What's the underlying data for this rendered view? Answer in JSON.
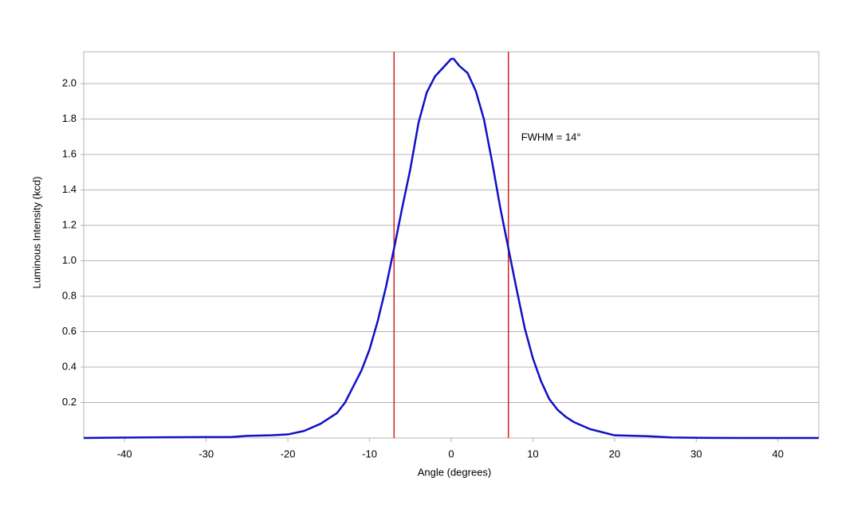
{
  "chart_data": {
    "type": "line",
    "xlabel": "Angle (degrees)",
    "ylabel": "Luminous Intensity (kcd)",
    "annotation": "FWHM = 14°",
    "x": [
      -45,
      -40,
      -35,
      -30,
      -27,
      -25,
      -22,
      -20,
      -18,
      -16,
      -14,
      -13,
      -12,
      -11,
      -10,
      -9,
      -8,
      -7,
      -6,
      -5,
      -4,
      -3,
      -2,
      -1,
      0,
      0.3,
      1,
      2,
      3,
      4,
      5,
      6,
      7,
      8,
      9,
      10,
      11,
      12,
      13,
      14,
      15,
      17,
      20,
      24,
      27,
      30,
      35,
      40,
      45
    ],
    "series": [
      {
        "color": "#1010c8",
        "values": [
          0,
          0.002,
          0.004,
          0.005,
          0.005,
          0.012,
          0.015,
          0.02,
          0.04,
          0.08,
          0.14,
          0.2,
          0.29,
          0.38,
          0.5,
          0.66,
          0.85,
          1.07,
          1.3,
          1.52,
          1.78,
          1.95,
          2.04,
          2.09,
          2.14,
          2.14,
          2.1,
          2.06,
          1.96,
          1.8,
          1.56,
          1.3,
          1.07,
          0.84,
          0.62,
          0.45,
          0.32,
          0.22,
          0.16,
          0.12,
          0.09,
          0.05,
          0.015,
          0.01,
          0.003,
          0.001,
          0,
          0,
          0
        ]
      }
    ],
    "vlines": [
      -7,
      7
    ],
    "vline_color": "#d02020",
    "xlim": [
      -45,
      45
    ],
    "ylim": [
      0,
      2.18
    ],
    "xticks": [
      -40,
      -30,
      -20,
      -10,
      0,
      10,
      20,
      30,
      40
    ],
    "yticks": [
      0.2,
      0.4,
      0.6,
      0.8,
      {
        "value": 1,
        "label": "1.0"
      },
      1.2,
      1.4,
      1.6,
      1.8,
      {
        "value": 2,
        "label": "2.0"
      }
    ],
    "grid": true
  }
}
